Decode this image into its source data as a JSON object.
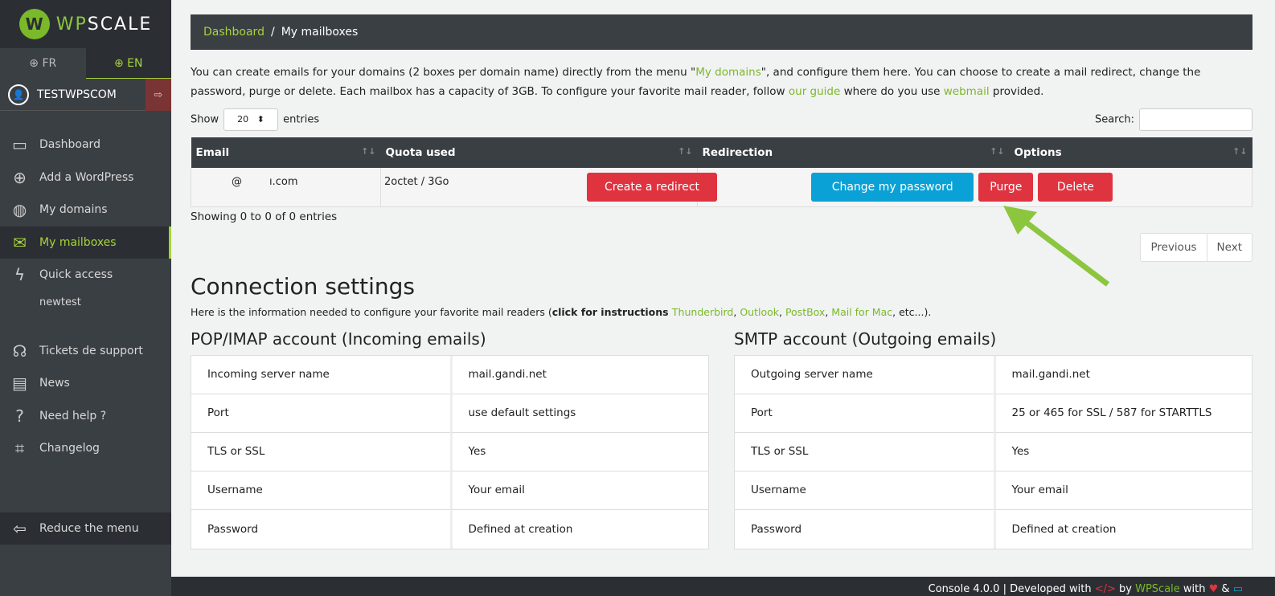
{
  "sidebar": {
    "logo": "WPSCALE",
    "lang": [
      {
        "label": "FR"
      },
      {
        "label": "EN"
      }
    ],
    "user": "TESTWPSCOM",
    "items": [
      {
        "label": "Dashboard",
        "icon": "monitor-icon"
      },
      {
        "label": "Add a WordPress",
        "icon": "plus-circle-icon"
      },
      {
        "label": "My domains",
        "icon": "globe-icon"
      },
      {
        "label": "My mailboxes",
        "icon": "envelope-icon",
        "active": true
      },
      {
        "label": "Quick access",
        "icon": "bolt-icon"
      }
    ],
    "quick_sub": "newtest",
    "items2": [
      {
        "label": "Tickets de support",
        "icon": "headset-icon"
      },
      {
        "label": "News",
        "icon": "chat-icon"
      },
      {
        "label": "Need help ?",
        "icon": "question-icon"
      },
      {
        "label": "Changelog",
        "icon": "code-file-icon"
      }
    ],
    "reduce": "Reduce the menu"
  },
  "breadcrumb": {
    "home": "Dashboard",
    "sep": "/",
    "current": "My mailboxes"
  },
  "intro": {
    "p1": "You can create emails for your domains (2 boxes per domain name) directly from the menu \"",
    "l1": "My domains",
    "p2": "\", and configure them here. You can choose to create a mail redirect, change the password, purge or delete. Each mailbox has a capacity of 3GB. To configure your favorite mail reader, follow ",
    "l2": "our guide",
    "p3": " where do you use ",
    "l3": "webmail",
    "p4": " provided."
  },
  "table": {
    "show": "Show",
    "entries_value": "20",
    "entries": "entries",
    "search": "Search:",
    "headers": [
      "Email",
      "Quota used",
      "Redirection",
      "Options"
    ],
    "row": {
      "email_user": "@",
      "email_domain": "ı.com",
      "quota": "2octet / 3Go",
      "redirect": "Create a redirect",
      "change_pw": "Change my password",
      "purge": "Purge",
      "delete": "Delete"
    },
    "info": "Showing 0 to 0 of 0 entries",
    "prev": "Previous",
    "next": "Next"
  },
  "connection": {
    "title": "Connection settings",
    "desc1": "Here is the information needed to configure your favorite mail readers (",
    "desc_bold": "click for instructions ",
    "links": [
      "Thunderbird",
      "Outlook",
      "PostBox",
      "Mail for Mac"
    ],
    "desc_end": ", etc...).",
    "pop": {
      "title": "POP/IMAP account (Incoming emails)",
      "rows": [
        [
          "Incoming server name",
          "mail.gandi.net"
        ],
        [
          "Port",
          "use default settings"
        ],
        [
          "TLS or SSL",
          "Yes"
        ],
        [
          "Username",
          "Your email"
        ],
        [
          "Password",
          "Defined at creation"
        ]
      ]
    },
    "smtp": {
      "title": "SMTP account (Outgoing emails)",
      "rows": [
        [
          "Outgoing server name",
          "mail.gandi.net"
        ],
        [
          "Port",
          "25 or 465 for SSL / 587 for STARTTLS"
        ],
        [
          "TLS or SSL",
          "Yes"
        ],
        [
          "Username",
          "Your email"
        ],
        [
          "Password",
          "Defined at creation"
        ]
      ]
    }
  },
  "footer": {
    "p1": "Console 4.0.0 | Developed with ",
    "p2": " by ",
    "brand": "WPScale",
    "p3": " with ",
    "p4": " & "
  },
  "colors": {
    "accent": "#a6d33a",
    "danger": "#e03340",
    "info": "#0aa1d6",
    "sidebar": "#3a3f44"
  }
}
